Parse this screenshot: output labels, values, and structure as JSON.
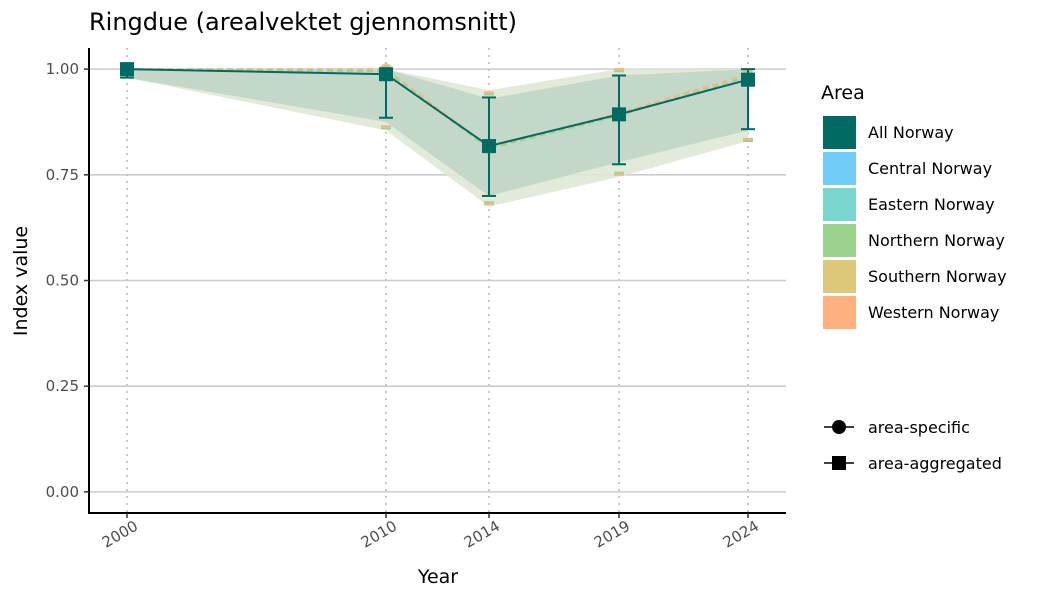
{
  "chart_data": {
    "type": "line",
    "title": "Ringdue (arealvektet gjennomsnitt)",
    "xlabel": "Year",
    "ylabel": "Index value",
    "x": [
      2000,
      2010,
      2014,
      2019,
      2024
    ],
    "x_tick_labels": [
      "2000",
      "2010",
      "2014",
      "2019",
      "2024"
    ],
    "ylim": [
      -0.05,
      1.05
    ],
    "y_ticks": [
      0.0,
      0.25,
      0.5,
      0.75,
      1.0
    ],
    "y_tick_labels": [
      "0.00",
      "0.25",
      "0.50",
      "0.75",
      "1.00"
    ],
    "grid": "horizontal major lines, vertical dotted lines at data years",
    "ribbons": [
      {
        "color": "#dfe8d5",
        "lower": [
          0.98,
          0.855,
          0.675,
          0.745,
          0.83
        ],
        "upper": [
          1.0,
          1.0,
          0.95,
          1.0,
          1.0
        ]
      },
      {
        "color": "#c0d6c6",
        "lower": [
          0.98,
          0.875,
          0.7,
          0.78,
          0.855
        ],
        "upper": [
          1.0,
          1.0,
          0.93,
          0.985,
          1.0
        ]
      }
    ],
    "series": [
      {
        "name": "All Norway",
        "role": "area-aggregated",
        "values": [
          1.0,
          0.988,
          0.818,
          0.893,
          0.975
        ],
        "lower": [
          0.98,
          0.885,
          0.7,
          0.775,
          0.858
        ],
        "upper": [
          1.0,
          1.0,
          0.933,
          0.985,
          1.0
        ]
      },
      {
        "name": "Western Norway",
        "role": "area-specific",
        "values": [
          1.0,
          1.0,
          0.815,
          0.895,
          0.988
        ],
        "lower": [
          0.98,
          0.865,
          0.68,
          0.75,
          0.835
        ],
        "upper": [
          1.0,
          1.0,
          0.945,
          1.0,
          1.0
        ]
      },
      {
        "name": "Northern Norway",
        "role": "area-specific",
        "values": [
          1.0,
          0.995,
          0.812,
          0.89,
          0.982
        ],
        "lower": [
          0.98,
          0.86,
          0.685,
          0.755,
          0.83
        ],
        "upper": [
          1.0,
          1.0,
          0.94,
          0.995,
          1.0
        ]
      }
    ],
    "legend": {
      "position": "right",
      "title": "Area",
      "areas": [
        {
          "label": "All Norway",
          "color": "#006a63"
        },
        {
          "label": "Central Norway",
          "color": "#6fcdf8"
        },
        {
          "label": "Eastern Norway",
          "color": "#7ad6ce"
        },
        {
          "label": "Northern Norway",
          "color": "#9bd38e"
        },
        {
          "label": "Southern Norway",
          "color": "#dbc87a"
        },
        {
          "label": "Western Norway",
          "color": "#ffb07f"
        }
      ],
      "shapes": [
        {
          "label": "area-specific",
          "shape": "circle"
        },
        {
          "label": "area-aggregated",
          "shape": "square"
        }
      ]
    }
  }
}
